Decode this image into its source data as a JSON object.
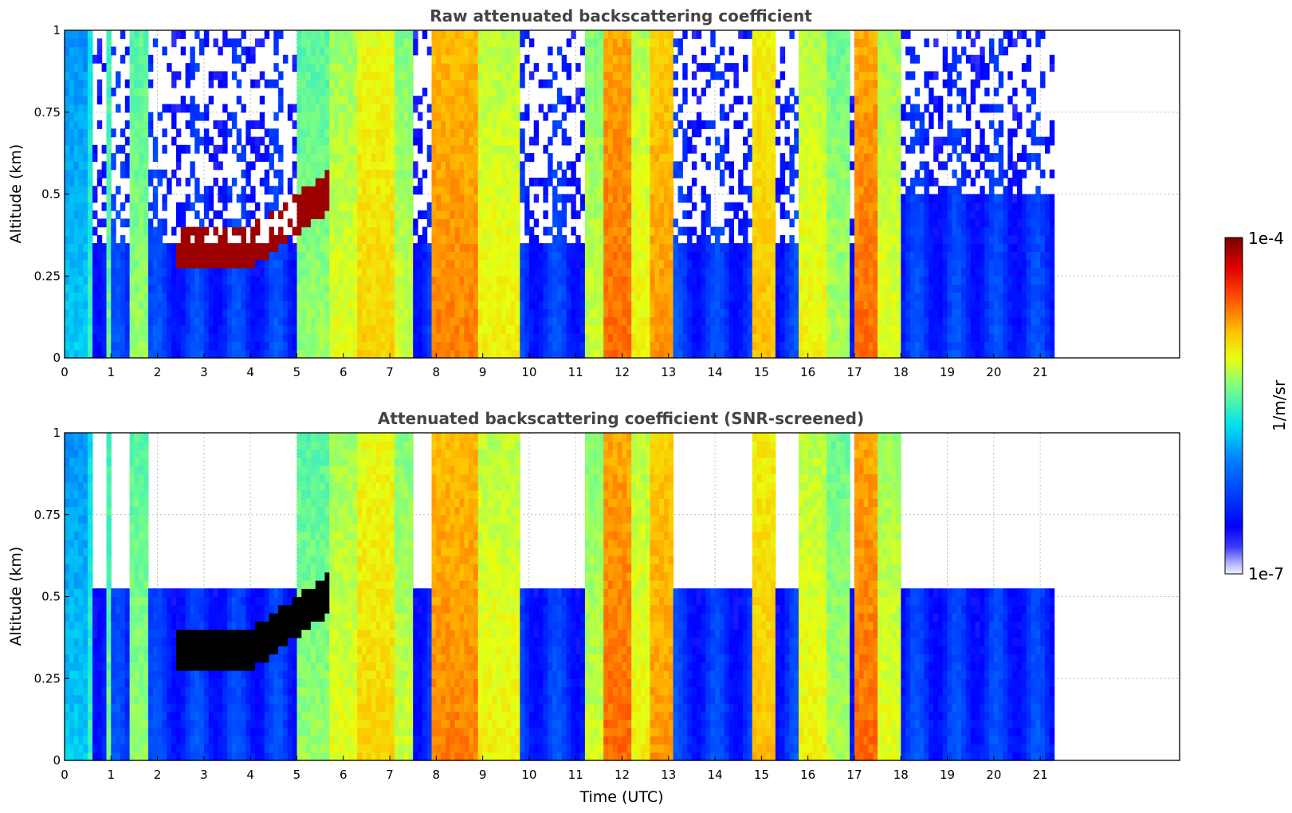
{
  "chart_data": [
    {
      "type": "heatmap",
      "title": "Raw attenuated backscattering coefficient",
      "xlabel": "",
      "ylabel": "Altitude (km)",
      "xlim": [
        0,
        24
      ],
      "ylim": [
        0,
        1
      ],
      "xticks": [
        "0",
        "1",
        "2",
        "3",
        "4",
        "5",
        "6",
        "7",
        "8",
        "9",
        "10",
        "11",
        "12",
        "13",
        "14",
        "15",
        "16",
        "17",
        "18",
        "19",
        "20",
        "21"
      ],
      "yticks": [
        "0",
        "0.25",
        "0.5",
        "0.75",
        "1"
      ],
      "data_extent_hours": 21.3,
      "grid": true,
      "screened": false
    },
    {
      "type": "heatmap",
      "title": "Attenuated backscattering coefficient (SNR-screened)",
      "xlabel": "Time (UTC)",
      "ylabel": "Altitude (km)",
      "xlim": [
        0,
        24
      ],
      "ylim": [
        0,
        1
      ],
      "xticks": [
        "0",
        "1",
        "2",
        "3",
        "4",
        "5",
        "6",
        "7",
        "8",
        "9",
        "10",
        "11",
        "12",
        "13",
        "14",
        "15",
        "16",
        "17",
        "18",
        "19",
        "20",
        "21"
      ],
      "yticks": [
        "0",
        "0.25",
        "0.5",
        "0.75",
        "1"
      ],
      "data_extent_hours": 21.3,
      "grid": true,
      "screened": true
    }
  ],
  "colorbar": {
    "label": "1/m/sr",
    "max_label": "1e-4",
    "min_label": "1e-7",
    "colormap": "jet",
    "range": [
      1e-07,
      0.0001
    ],
    "scale": "log"
  }
}
